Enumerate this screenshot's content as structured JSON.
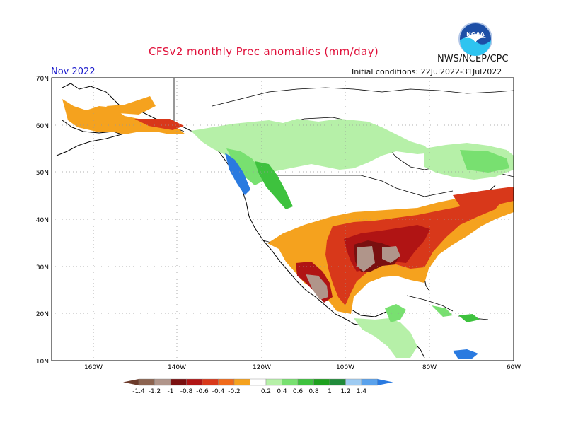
{
  "header": {
    "title": "CFSv2 monthly Prec anomalies (mm/day)",
    "agency": "NWS/NCEP/CPC",
    "month": "Nov 2022",
    "initial_conditions": "Initial conditions: 22Jul2022-31Jul2022"
  },
  "logo": {
    "text": "NOAA"
  },
  "map": {
    "lat_labels": [
      "70N",
      "60N",
      "50N",
      "40N",
      "30N",
      "20N",
      "10N"
    ],
    "lon_labels": [
      "160W",
      "140W",
      "120W",
      "100W",
      "80W",
      "60W"
    ]
  },
  "colorbar": {
    "labels": [
      "-1.4",
      "-1.2",
      "-1",
      "-0.8",
      "-0.6",
      "-0.4",
      "-0.2",
      "0.2",
      "0.4",
      "0.6",
      "0.8",
      "1",
      "1.2",
      "1.4"
    ],
    "colors": [
      "#6b3a2a",
      "#8c6450",
      "#b0958a",
      "#7a1010",
      "#b01414",
      "#d8381a",
      "#f06a1a",
      "#f5a21e",
      "#ffffff",
      "#b6f0a8",
      "#78e070",
      "#3ec23e",
      "#1ea01e",
      "#208a3a",
      "#9ecbf2",
      "#5aa2ec",
      "#2a7ae0"
    ]
  }
}
